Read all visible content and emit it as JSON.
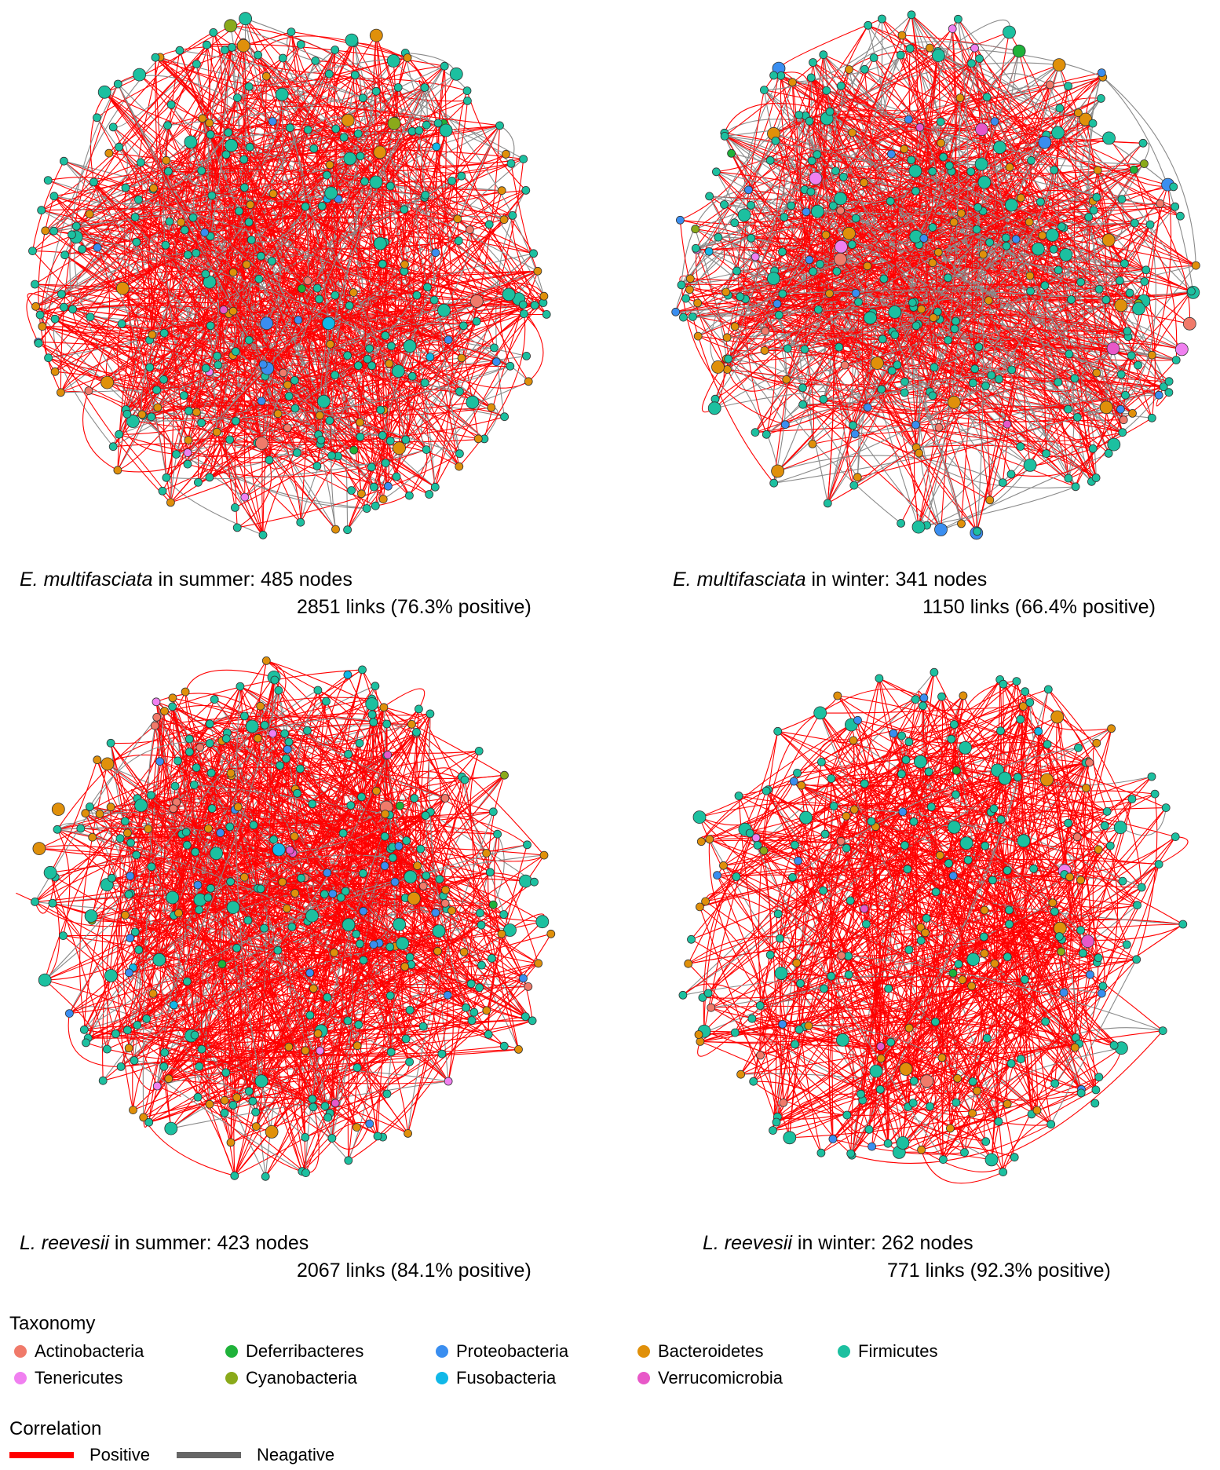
{
  "panels": [
    {
      "id": "em-summer",
      "species": "E. multifasciata",
      "season_text": " in summer: 485 nodes",
      "links_text": "2851 links (76.3% positive)",
      "nodes": 485,
      "links": 2851,
      "positive_pct": 76.3
    },
    {
      "id": "em-winter",
      "species": "E. multifasciata",
      "season_text": " in winter: 341 nodes",
      "links_text": "1150 links (66.4% positive)",
      "nodes": 341,
      "links": 1150,
      "positive_pct": 66.4
    },
    {
      "id": "lr-summer",
      "species": "L. reevesii",
      "season_text": " in summer: 423 nodes",
      "links_text": "2067 links (84.1% positive)",
      "nodes": 423,
      "links": 2067,
      "positive_pct": 84.1
    },
    {
      "id": "lr-winter",
      "species": "L. reevesii",
      "season_text": " in winter: 262 nodes",
      "links_text": "771 links (92.3% positive)",
      "nodes": 262,
      "links": 771,
      "positive_pct": 92.3
    }
  ],
  "legend": {
    "taxonomy_title": "Taxonomy",
    "taxa": [
      {
        "label": "Actinobacteria",
        "color": "#f07a6a"
      },
      {
        "label": "Deferribacteres",
        "color": "#1fb23a"
      },
      {
        "label": "Proteobacteria",
        "color": "#3a8ef0"
      },
      {
        "label": "Bacteroidetes",
        "color": "#e0900a"
      },
      {
        "label": "Firmicutes",
        "color": "#1cc0a0"
      },
      {
        "label": "Tenericutes",
        "color": "#f080f0"
      },
      {
        "label": "Cyanobacteria",
        "color": "#8aaa1a"
      },
      {
        "label": "Fusobacteria",
        "color": "#10b8e8"
      },
      {
        "label": "Verrucomicrobia",
        "color": "#e858c8"
      }
    ],
    "correlation_title": "Correlation",
    "correlations": [
      {
        "label": "Positive",
        "color": "#ff0000"
      },
      {
        "label": "Neagative",
        "color": "#666666"
      }
    ]
  }
}
